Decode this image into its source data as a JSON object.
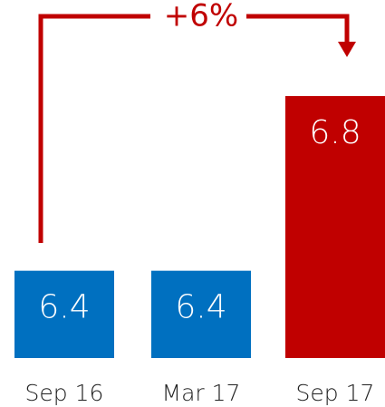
{
  "chart_data": {
    "type": "bar",
    "categories": [
      "Sep 16",
      "Mar 17",
      "Sep 17"
    ],
    "values": [
      6.4,
      6.4,
      6.8
    ],
    "colors": [
      "#0070c0",
      "#0070c0",
      "#c00000"
    ],
    "ylim": [
      6.2,
      6.8
    ],
    "annotation": {
      "text": "+6%",
      "color": "#c00000"
    }
  }
}
